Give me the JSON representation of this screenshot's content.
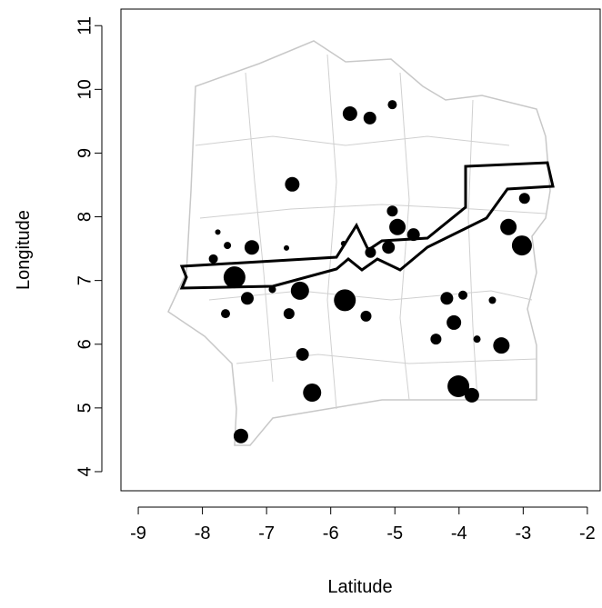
{
  "chart_data": {
    "type": "scatter",
    "xlabel": "Latitude",
    "ylabel": "Longitude",
    "xlim": [
      -9.27,
      -1.8
    ],
    "ylim": [
      3.7,
      11.26
    ],
    "xticks": [
      -9,
      -8,
      -7,
      -6,
      -5,
      -4,
      -3,
      -2
    ],
    "yticks": [
      4,
      5,
      6,
      7,
      8,
      9,
      10,
      11
    ],
    "color": "#000000",
    "x": [
      -5.7,
      -5.39,
      -5.04,
      -6.6,
      -5.04,
      -4.96,
      -4.71,
      -5.1,
      -5.38,
      -5.8,
      -6.69,
      -7.23,
      -7.61,
      -7.5,
      -7.83,
      -7.3,
      -7.64,
      -6.91,
      -6.48,
      -5.78,
      -6.65,
      -5.45,
      -6.44,
      -6.29,
      -7.4,
      -4.19,
      -3.94,
      -4.08,
      -4.36,
      -3.72,
      -3.34,
      -4.01,
      -3.8,
      -3.48,
      -3.23,
      -3.02,
      -2.98,
      -7.76
    ],
    "y": [
      9.62,
      9.55,
      9.76,
      8.51,
      8.09,
      7.84,
      7.72,
      7.52,
      7.44,
      7.58,
      7.51,
      7.52,
      7.55,
      7.05,
      7.34,
      6.72,
      6.48,
      6.86,
      6.84,
      6.69,
      6.48,
      6.44,
      5.84,
      5.24,
      4.56,
      6.72,
      6.77,
      6.34,
      6.08,
      6.08,
      5.98,
      5.34,
      5.2,
      6.69,
      7.84,
      7.55,
      8.29,
      7.76
    ],
    "sizes": [
      8,
      7,
      5,
      8,
      6,
      9,
      7,
      7,
      6,
      3,
      3,
      8,
      4,
      12,
      5,
      7,
      5,
      4,
      10,
      12,
      6,
      6,
      7,
      10,
      8,
      7,
      5,
      8,
      6,
      4,
      9,
      12,
      8,
      4,
      9,
      11,
      6,
      3
    ]
  }
}
